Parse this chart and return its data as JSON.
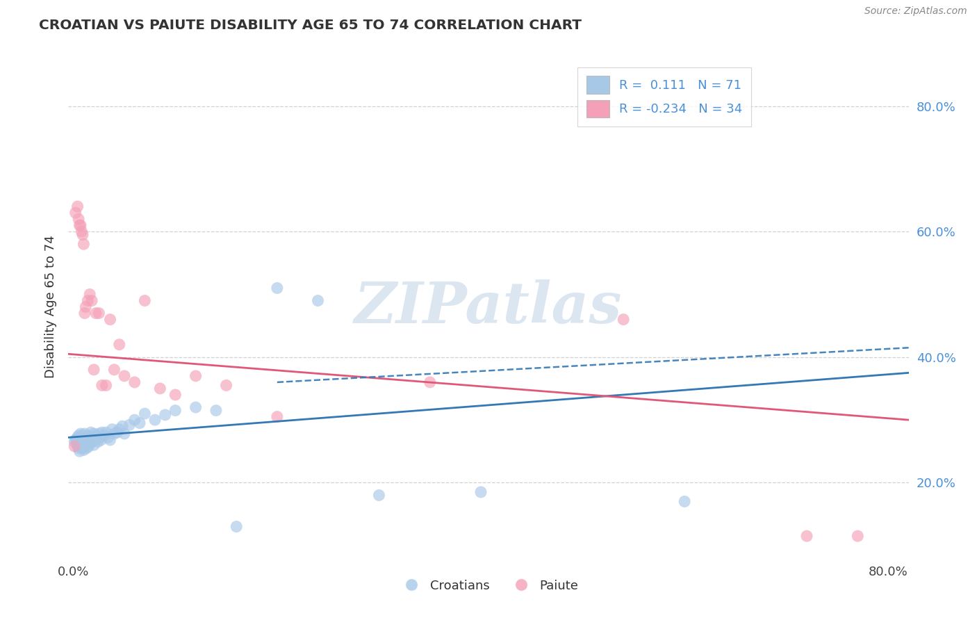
{
  "title": "CROATIAN VS PAIUTE DISABILITY AGE 65 TO 74 CORRELATION CHART",
  "source": "Source: ZipAtlas.com",
  "ylabel": "Disability Age 65 to 74",
  "xlim": [
    -0.005,
    0.82
  ],
  "ylim": [
    0.08,
    0.88
  ],
  "x_ticks": [
    0.0,
    0.2,
    0.4,
    0.6,
    0.8
  ],
  "x_tick_labels": [
    "0.0%",
    "",
    "",
    "",
    "80.0%"
  ],
  "y_ticks": [
    0.2,
    0.4,
    0.6,
    0.8
  ],
  "y_tick_labels": [
    "20.0%",
    "40.0%",
    "60.0%",
    "80.0%"
  ],
  "croatian_R": 0.111,
  "croatian_N": 71,
  "paiute_R": -0.234,
  "paiute_N": 34,
  "blue_color": "#a8c8e8",
  "pink_color": "#f4a0b8",
  "blue_line_color": "#3478b5",
  "pink_line_color": "#e05878",
  "watermark_text": "ZIPatlas",
  "watermark_color": "#dce6f0",
  "grid_color": "#cccccc",
  "background_color": "#ffffff",
  "croatian_x": [
    0.001,
    0.002,
    0.003,
    0.004,
    0.004,
    0.005,
    0.005,
    0.005,
    0.006,
    0.006,
    0.006,
    0.007,
    0.007,
    0.007,
    0.008,
    0.008,
    0.008,
    0.009,
    0.009,
    0.01,
    0.01,
    0.01,
    0.011,
    0.011,
    0.012,
    0.012,
    0.013,
    0.013,
    0.014,
    0.015,
    0.015,
    0.016,
    0.017,
    0.017,
    0.018,
    0.019,
    0.02,
    0.02,
    0.021,
    0.022,
    0.023,
    0.024,
    0.025,
    0.026,
    0.027,
    0.028,
    0.03,
    0.032,
    0.034,
    0.036,
    0.038,
    0.04,
    0.043,
    0.045,
    0.048,
    0.05,
    0.055,
    0.06,
    0.065,
    0.07,
    0.08,
    0.09,
    0.1,
    0.12,
    0.14,
    0.16,
    0.2,
    0.24,
    0.3,
    0.4,
    0.6
  ],
  "croatian_y": [
    0.265,
    0.268,
    0.27,
    0.258,
    0.272,
    0.255,
    0.26,
    0.275,
    0.25,
    0.263,
    0.27,
    0.258,
    0.265,
    0.278,
    0.26,
    0.268,
    0.275,
    0.255,
    0.27,
    0.252,
    0.258,
    0.272,
    0.265,
    0.278,
    0.26,
    0.272,
    0.255,
    0.268,
    0.275,
    0.258,
    0.27,
    0.263,
    0.268,
    0.28,
    0.265,
    0.272,
    0.26,
    0.278,
    0.268,
    0.275,
    0.27,
    0.265,
    0.278,
    0.272,
    0.268,
    0.28,
    0.275,
    0.28,
    0.272,
    0.268,
    0.285,
    0.278,
    0.28,
    0.285,
    0.29,
    0.278,
    0.292,
    0.3,
    0.295,
    0.31,
    0.3,
    0.308,
    0.315,
    0.32,
    0.315,
    0.13,
    0.51,
    0.49,
    0.18,
    0.185,
    0.17
  ],
  "paiute_x": [
    0.001,
    0.002,
    0.004,
    0.005,
    0.006,
    0.007,
    0.008,
    0.009,
    0.01,
    0.011,
    0.012,
    0.014,
    0.016,
    0.018,
    0.02,
    0.022,
    0.025,
    0.028,
    0.032,
    0.036,
    0.04,
    0.045,
    0.05,
    0.06,
    0.07,
    0.085,
    0.1,
    0.12,
    0.15,
    0.2,
    0.35,
    0.54,
    0.72,
    0.77
  ],
  "paiute_y": [
    0.258,
    0.63,
    0.64,
    0.62,
    0.61,
    0.61,
    0.6,
    0.595,
    0.58,
    0.47,
    0.48,
    0.49,
    0.5,
    0.49,
    0.38,
    0.47,
    0.47,
    0.355,
    0.355,
    0.46,
    0.38,
    0.42,
    0.37,
    0.36,
    0.49,
    0.35,
    0.34,
    0.37,
    0.355,
    0.305,
    0.36,
    0.46,
    0.115,
    0.115
  ]
}
